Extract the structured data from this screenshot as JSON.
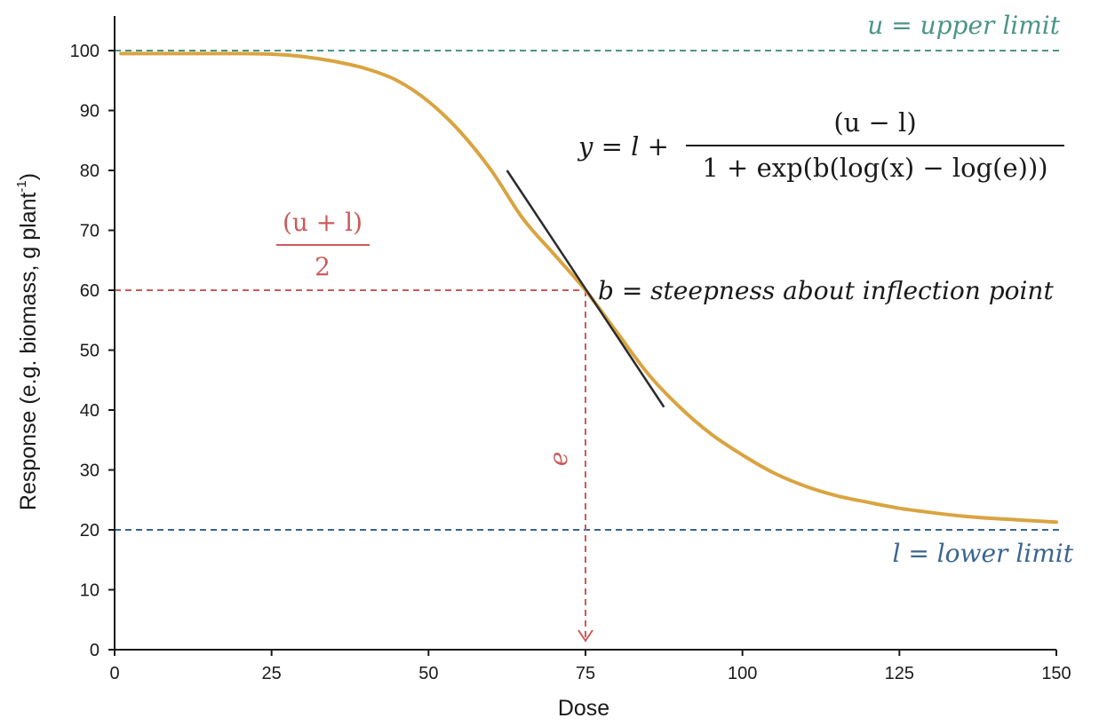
{
  "chart_data": {
    "type": "line",
    "title": "",
    "xlabel": "Dose",
    "ylabel": "Response (e.g. biomass, g plant",
    "ylabel_superscript": "-1",
    "ylabel_close": ")",
    "xlim": [
      0,
      150
    ],
    "ylim": [
      0,
      100
    ],
    "xticks": [
      0,
      25,
      50,
      75,
      100,
      125,
      150
    ],
    "yticks": [
      0,
      10,
      20,
      30,
      40,
      50,
      60,
      70,
      80,
      90,
      100
    ],
    "grid": false,
    "legend": "none",
    "series": [
      {
        "color": "#d9a441",
        "x": [
          1,
          10,
          20,
          25,
          30,
          35,
          40,
          45,
          50,
          55,
          60,
          65,
          70,
          75,
          80,
          85,
          90,
          95,
          100,
          105,
          110,
          115,
          120,
          125,
          130,
          135,
          140,
          145,
          150
        ],
        "y": [
          99.5,
          99.5,
          99.5,
          99.4,
          99.0,
          98.2,
          97.0,
          95.0,
          91.5,
          86.5,
          80.0,
          72.0,
          66.0,
          60.0,
          53.0,
          46.0,
          40.5,
          36.0,
          32.5,
          29.5,
          27.3,
          25.7,
          24.6,
          23.6,
          22.9,
          22.3,
          21.9,
          21.6,
          21.3
        ]
      }
    ],
    "reference_lines": {
      "upper": {
        "y": 100,
        "label": "u = upper limit",
        "color": "#4a9488"
      },
      "lower": {
        "y": 20,
        "label": "l = lower limit",
        "color": "#3b6591"
      }
    },
    "inflection": {
      "x": 75,
      "y": 60,
      "color": "#cc5a5a",
      "x_label": "e",
      "y_label_numerator": "(u + l)",
      "y_label_denominator": "2"
    },
    "tangent": {
      "color": "#2b2b2b",
      "x1": 62.5,
      "y1": 80,
      "x2": 87.5,
      "y2": 40.5,
      "label": "b = steepness about inflection point"
    },
    "equation": {
      "lhs": "y = l +",
      "numerator": "(u − l)",
      "denominator": "1 + exp(b(log(x) − log(e)))"
    }
  }
}
